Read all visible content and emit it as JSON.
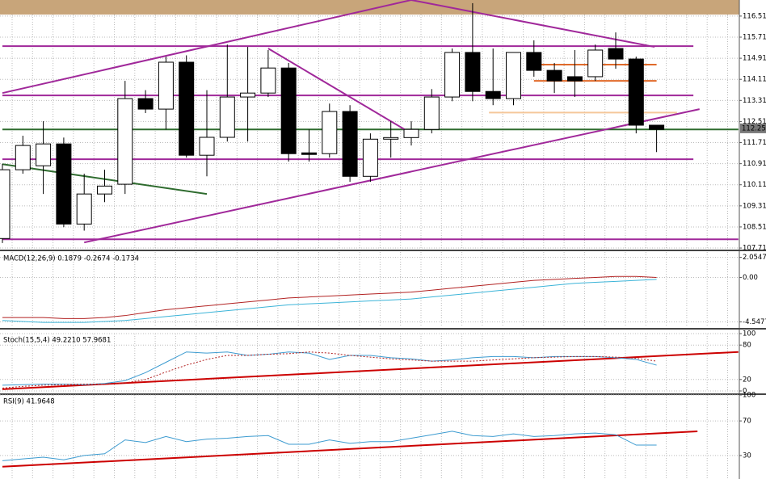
{
  "chart_data": [
    {
      "type": "candlestick",
      "open": [
        108.07,
        110.68,
        110.83,
        111.66,
        108.62,
        109.76,
        110.13,
        113.38,
        112.98,
        114.76,
        111.23,
        111.91,
        113.44,
        113.59,
        114.54,
        111.32,
        111.29,
        112.89,
        110.43,
        111.84,
        111.9,
        112.21,
        113.44,
        115.13,
        113.65,
        113.38,
        115.13,
        114.45,
        114.21,
        114.21,
        115.28,
        114.88,
        112.37
      ],
      "high": [
        110.9,
        111.97,
        112.52,
        111.9,
        110.53,
        110.68,
        114.05,
        113.7,
        114.97,
        115.02,
        113.7,
        115.43,
        115.34,
        115.22,
        114.73,
        112.21,
        113.19,
        113.13,
        112.06,
        112.52,
        112.52,
        113.74,
        115.28,
        117.0,
        115.28,
        115.13,
        115.59,
        114.73,
        115.22,
        115.43,
        115.89,
        114.97,
        112.37
      ],
      "low": [
        107.9,
        110.53,
        109.76,
        108.5,
        108.37,
        109.45,
        109.76,
        112.83,
        112.21,
        111.14,
        110.43,
        111.75,
        111.75,
        113.44,
        110.99,
        110.99,
        111.14,
        110.22,
        110.22,
        111.14,
        111.6,
        112.06,
        113.28,
        113.28,
        113.13,
        113.13,
        114.21,
        113.59,
        113.44,
        114.05,
        114.51,
        112.06,
        111.35
      ],
      "close": [
        110.68,
        111.6,
        111.66,
        108.62,
        109.76,
        110.06,
        113.38,
        112.98,
        114.76,
        111.23,
        111.91,
        113.44,
        113.59,
        114.54,
        111.29,
        111.26,
        112.89,
        110.43,
        111.84,
        111.9,
        112.21,
        113.44,
        115.13,
        113.65,
        113.38,
        115.13,
        114.45,
        114.05,
        114.05,
        115.22,
        114.88,
        112.37,
        112.21
      ],
      "up_color": "#ffffff",
      "down_color": "#000000",
      "ylim": [
        107.65,
        117.12
      ],
      "yticks": [
        {
          "value": 116.51,
          "label": "116.510"
        },
        {
          "value": 115.71,
          "label": "115.710"
        },
        {
          "value": 114.91,
          "label": "114.910"
        },
        {
          "value": 114.11,
          "label": "114.110"
        },
        {
          "value": 113.31,
          "label": "113.310"
        },
        {
          "value": 112.51,
          "label": "112.510"
        },
        {
          "value": 111.71,
          "label": "111.710"
        },
        {
          "value": 110.91,
          "label": "110.910"
        },
        {
          "value": 110.11,
          "label": "110.110"
        },
        {
          "value": 109.31,
          "label": "109.310"
        },
        {
          "value": 108.51,
          "label": "108.510"
        },
        {
          "value": 107.71,
          "label": "107.710"
        }
      ],
      "last_price": 112.251,
      "hlines": [
        {
          "value": 115.37,
          "x": [
            0,
            33.8
          ],
          "color": "#a0289a"
        },
        {
          "value": 113.5,
          "x": [
            0,
            33.8
          ],
          "color": "#a0289a"
        },
        {
          "value": 111.08,
          "x": [
            0,
            33.8
          ],
          "color": "#a0289a"
        },
        {
          "value": 108.04,
          "x": [
            0,
            36
          ],
          "color": "#a0289a"
        },
        {
          "value": 112.21,
          "x": [
            0,
            36
          ],
          "color": "#2e6b2e"
        },
        {
          "value": 114.67,
          "x": [
            25.8,
            32
          ],
          "color": "#e06a2a"
        },
        {
          "value": 114.05,
          "x": [
            26,
            32
          ],
          "color": "#e06a2a"
        },
        {
          "value": 112.85,
          "x": [
            23.8,
            33
          ],
          "color": "#f5c79a"
        }
      ],
      "trendlines": [
        {
          "x": [
            0,
            20
          ],
          "y": [
            113.59,
            117.12
          ],
          "color": "#a0289a"
        },
        {
          "x": [
            4,
            34.1
          ],
          "y": [
            107.92,
            112.98
          ],
          "color": "#a0289a"
        },
        {
          "x": [
            20,
            31.9
          ],
          "y": [
            117.12,
            115.34
          ],
          "color": "#a0289a"
        },
        {
          "x": [
            13,
            20
          ],
          "y": [
            115.28,
            112.06
          ],
          "color": "#a0289a"
        },
        {
          "x": [
            0,
            10
          ],
          "y": [
            110.89,
            109.76
          ],
          "color": "#2e6b2e"
        }
      ],
      "grid": true
    },
    {
      "type": "line",
      "title": "MACD(12,26,9) 0.1879 -0.2674 -0.1734",
      "series": [
        {
          "color": "#b22222",
          "values": [
            -4.1,
            -4.1,
            -4.1,
            -4.2,
            -4.2,
            -4.1,
            -3.9,
            -3.6,
            -3.3,
            -3.1,
            -2.9,
            -2.7,
            -2.5,
            -2.3,
            -2.1,
            -2.0,
            -1.9,
            -1.8,
            -1.7,
            -1.6,
            -1.5,
            -1.3,
            -1.1,
            -0.9,
            -0.7,
            -0.5,
            -0.3,
            -0.2,
            -0.1,
            0.0,
            0.1,
            0.1,
            0.0
          ]
        },
        {
          "color": "#3cb4d8",
          "values": [
            -4.4,
            -4.5,
            -4.6,
            -4.6,
            -4.6,
            -4.5,
            -4.4,
            -4.2,
            -4.0,
            -3.8,
            -3.6,
            -3.4,
            -3.2,
            -3.0,
            -2.8,
            -2.7,
            -2.6,
            -2.5,
            -2.4,
            -2.3,
            -2.2,
            -2.0,
            -1.8,
            -1.6,
            -1.4,
            -1.2,
            -1.0,
            -0.8,
            -0.6,
            -0.5,
            -0.4,
            -0.3,
            -0.2
          ]
        }
      ],
      "ylim": [
        -5.0,
        2.6
      ],
      "yticks": [
        2.0547,
        {
          "value": 0,
          "label": "0.00"
        },
        -4.5477
      ],
      "grid": true
    },
    {
      "type": "line",
      "title": "Stoch(15,5,4) 49.2210 57.9681",
      "series": [
        {
          "color": "#3c9bd0",
          "values": [
            10,
            11,
            12,
            12,
            11,
            13,
            18,
            32,
            50,
            68,
            66,
            68,
            62,
            64,
            68,
            66,
            55,
            62,
            62,
            58,
            56,
            52,
            54,
            58,
            60,
            60,
            58,
            60,
            60,
            60,
            58,
            55,
            45
          ]
        },
        {
          "color": "#b22222",
          "dash": true,
          "values": [
            5,
            8,
            10,
            11,
            12,
            12,
            14,
            20,
            33,
            45,
            55,
            62,
            62,
            64,
            65,
            68,
            66,
            62,
            59,
            56,
            54,
            52,
            52,
            52,
            54,
            56,
            58,
            59,
            60,
            60,
            59,
            57,
            52
          ]
        }
      ],
      "trendlines": [
        {
          "x": [
            0,
            36
          ],
          "y": [
            3,
            68
          ],
          "color": "#cc0000"
        }
      ],
      "ylim": [
        0,
        100
      ],
      "yticks": [
        100,
        80,
        20,
        0
      ],
      "grid": true
    },
    {
      "type": "line",
      "title": "RSI(9) 41.9648",
      "series": [
        {
          "color": "#3c9bd0",
          "values": [
            24,
            26,
            28,
            25,
            30,
            32,
            48,
            45,
            52,
            46,
            49,
            50,
            52,
            53,
            43,
            43,
            48,
            44,
            46,
            46,
            50,
            54,
            58,
            53,
            52,
            55,
            52,
            53,
            55,
            56,
            54,
            42,
            42
          ]
        }
      ],
      "trendlines": [
        {
          "x": [
            0,
            34
          ],
          "y": [
            17,
            58
          ],
          "color": "#cc0000"
        }
      ],
      "ylim": [
        0,
        100
      ],
      "yticks": [
        100,
        70,
        30
      ],
      "grid": true
    }
  ]
}
